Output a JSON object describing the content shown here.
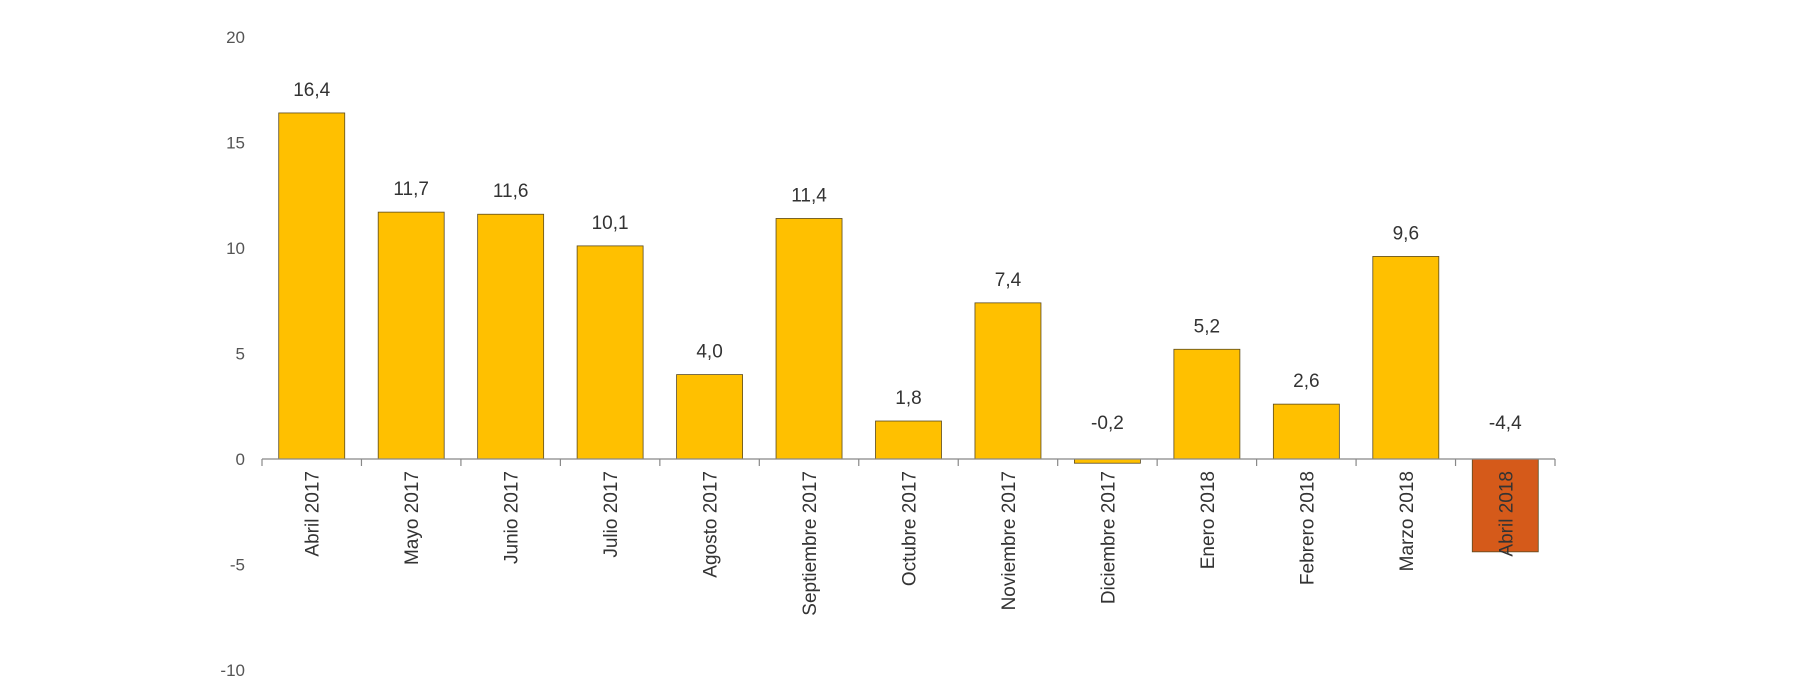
{
  "chart_data": {
    "type": "bar",
    "categories": [
      "Abril 2017",
      "Mayo 2017",
      "Junio 2017",
      "Julio 2017",
      "Agosto 2017",
      "Septiembre 2017",
      "Octubre 2017",
      "Noviembre 2017",
      "Diciembre 2017",
      "Enero 2018",
      "Febrero 2018",
      "Marzo 2018",
      "Abril 2018"
    ],
    "values": [
      16.4,
      11.7,
      11.6,
      10.1,
      4.0,
      11.4,
      1.8,
      7.4,
      -0.2,
      5.2,
      2.6,
      9.6,
      -4.4
    ],
    "data_labels": [
      "16,4",
      "11,7",
      "11,6",
      "10,1",
      "4,0",
      "11,4",
      "1,8",
      "7,4",
      "-0,2",
      "5,2",
      "2,6",
      "9,6",
      "-4,4"
    ],
    "bar_colors": [
      "#FFC000",
      "#FFC000",
      "#FFC000",
      "#FFC000",
      "#FFC000",
      "#FFC000",
      "#FFC000",
      "#FFC000",
      "#FFC000",
      "#FFC000",
      "#FFC000",
      "#FFC000",
      "#D55A1A"
    ],
    "y_ticks": [
      20,
      15,
      10,
      5,
      0,
      -5,
      -10
    ],
    "y_tick_labels": [
      "20",
      "15",
      "10",
      "5",
      "0",
      "-5",
      "-10"
    ],
    "ylim": [
      -10,
      20
    ],
    "title": "",
    "xlabel": "",
    "ylabel": "",
    "grid": false,
    "legend": "none"
  }
}
